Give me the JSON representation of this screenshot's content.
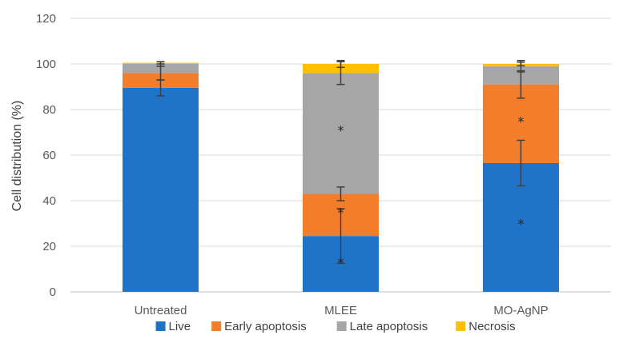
{
  "chart_data": {
    "type": "bar",
    "stacked": true,
    "categories": [
      "Untreated",
      "MLEE",
      "MO-AgNP"
    ],
    "ylabel": "Cell distribution (%)",
    "xlabel": "",
    "ylim": [
      0,
      120
    ],
    "yticks": [
      0,
      20,
      40,
      60,
      80,
      100,
      120
    ],
    "grid": true,
    "legend_position": "bottom",
    "series": [
      {
        "name": "Live",
        "color": "#1F74C9",
        "values": [
          89.5,
          24.5,
          56.5
        ],
        "error": [
          3.5,
          12,
          10
        ]
      },
      {
        "name": "Early apoptosis",
        "color": "#F27D2A",
        "values": [
          6.5,
          18.5,
          34.5
        ],
        "error": [
          3,
          3,
          6
        ]
      },
      {
        "name": "Late apoptosis",
        "color": "#A6A6A6",
        "values": [
          4,
          53,
          8
        ],
        "error": [
          1,
          5,
          2.5
        ]
      },
      {
        "name": "Necrosis",
        "color": "#FFC000",
        "values": [
          0.5,
          4,
          1
        ],
        "error": [
          0.5,
          1.5,
          0.8
        ]
      }
    ],
    "significance": [
      {
        "category": "MLEE",
        "value": 13,
        "label": "*"
      },
      {
        "category": "MLEE",
        "value": 35,
        "label": "*"
      },
      {
        "category": "MLEE",
        "value": 71,
        "label": "*"
      },
      {
        "category": "MO-AgNP",
        "value": 30,
        "label": "*"
      },
      {
        "category": "MO-AgNP",
        "value": 75,
        "label": "*"
      }
    ]
  }
}
